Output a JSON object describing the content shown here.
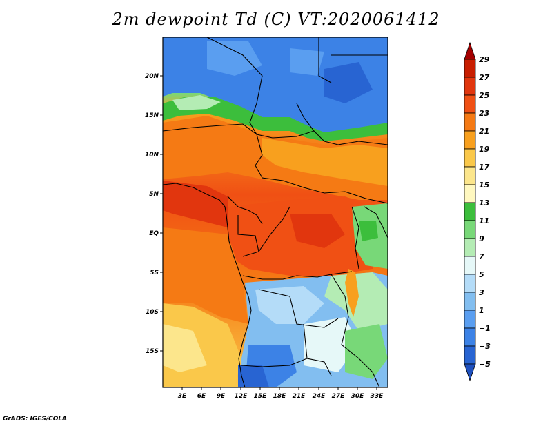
{
  "title": "2m dewpoint Td (C) VT:2020061412",
  "credit": "GrADS: IGES/COLA",
  "map": {
    "lat_labels": [
      "20N",
      "15N",
      "10N",
      "5N",
      "EQ",
      "5S",
      "10S",
      "15S"
    ],
    "lon_labels": [
      "3E",
      "6E",
      "9E",
      "12E",
      "15E",
      "18E",
      "21E",
      "24E",
      "27E",
      "30E",
      "33E"
    ]
  },
  "colorbar": {
    "labels": [
      "29",
      "27",
      "25",
      "23",
      "21",
      "19",
      "17",
      "15",
      "13",
      "11",
      "9",
      "7",
      "5",
      "3",
      "1",
      "−1",
      "−3",
      "−5"
    ],
    "colors": [
      "#a50000",
      "#c81e00",
      "#e1360e",
      "#f05014",
      "#f57a14",
      "#f8a01e",
      "#fac84a",
      "#fce68c",
      "#fff8c0",
      "#3cbe3c",
      "#78d878",
      "#b4ecb4",
      "#e6f8f8",
      "#b4dcf8",
      "#82bef0",
      "#5a9ef0",
      "#3c82e6",
      "#2864d2",
      "#1e50be"
    ]
  }
}
